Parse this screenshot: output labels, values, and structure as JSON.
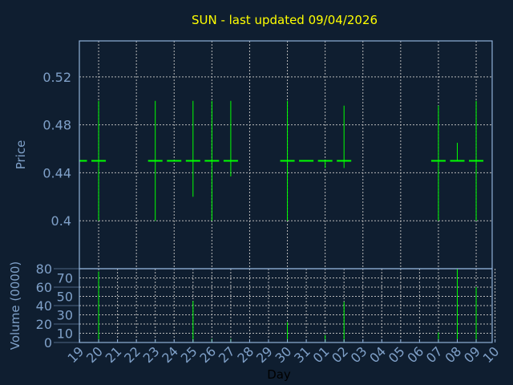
{
  "chart_data": [
    {
      "type": "candlestick",
      "title": "SUN - last updated 09/04/2026",
      "ylabel": "Price",
      "ylim": [
        0.36,
        0.55
      ],
      "yticks": [
        0.4,
        0.44,
        0.48,
        0.52
      ],
      "ytick_labels": [
        "0.4",
        "0.44",
        "0.48",
        "0.52"
      ],
      "grid": true,
      "color": "#00ff00",
      "points": [
        {
          "day": "19",
          "open": 0.45,
          "high": 0.45,
          "low": 0.45,
          "close": 0.45
        },
        {
          "day": "20",
          "open": 0.45,
          "high": 0.5,
          "low": 0.4,
          "close": 0.45
        },
        {
          "day": "23",
          "open": 0.45,
          "high": 0.5,
          "low": 0.4,
          "close": 0.45
        },
        {
          "day": "24",
          "open": 0.45,
          "high": 0.45,
          "low": 0.45,
          "close": 0.45
        },
        {
          "day": "25",
          "open": 0.45,
          "high": 0.5,
          "low": 0.42,
          "close": 0.45
        },
        {
          "day": "26",
          "open": 0.45,
          "high": 0.5,
          "low": 0.4,
          "close": 0.45
        },
        {
          "day": "27",
          "open": 0.45,
          "high": 0.5,
          "low": 0.437,
          "close": 0.45
        },
        {
          "day": "30",
          "open": 0.45,
          "high": 0.5,
          "low": 0.4,
          "close": 0.45
        },
        {
          "day": "31",
          "open": 0.45,
          "high": 0.45,
          "low": 0.45,
          "close": 0.45
        },
        {
          "day": "01",
          "open": 0.45,
          "high": 0.45,
          "low": 0.444,
          "close": 0.45
        },
        {
          "day": "02",
          "open": 0.45,
          "high": 0.496,
          "low": 0.444,
          "close": 0.45
        },
        {
          "day": "07",
          "open": 0.45,
          "high": 0.496,
          "low": 0.4,
          "close": 0.45
        },
        {
          "day": "08",
          "open": 0.45,
          "high": 0.465,
          "low": 0.45,
          "close": 0.45
        },
        {
          "day": "09",
          "open": 0.45,
          "high": 0.5,
          "low": 0.4,
          "close": 0.45
        }
      ]
    },
    {
      "type": "bar",
      "xlabel": "Day",
      "ylabel": "Volume (0000)",
      "ylim": [
        0,
        80
      ],
      "yticks": [
        "0",
        "10",
        "20",
        "30",
        "40",
        "50",
        "60",
        "70",
        "80"
      ],
      "grid": true,
      "color": "#00ff00",
      "categories": [
        "19",
        "20",
        "21",
        "22",
        "23",
        "24",
        "25",
        "26",
        "27",
        "28",
        "29",
        "30",
        "31",
        "01",
        "02",
        "03",
        "04",
        "05",
        "06",
        "07",
        "08",
        "09",
        "10"
      ],
      "values": [
        0,
        77,
        0,
        0,
        1,
        0,
        45,
        4,
        4,
        0,
        0,
        22,
        0,
        8,
        44,
        0,
        0,
        0,
        0,
        11,
        80,
        60,
        0
      ]
    }
  ]
}
